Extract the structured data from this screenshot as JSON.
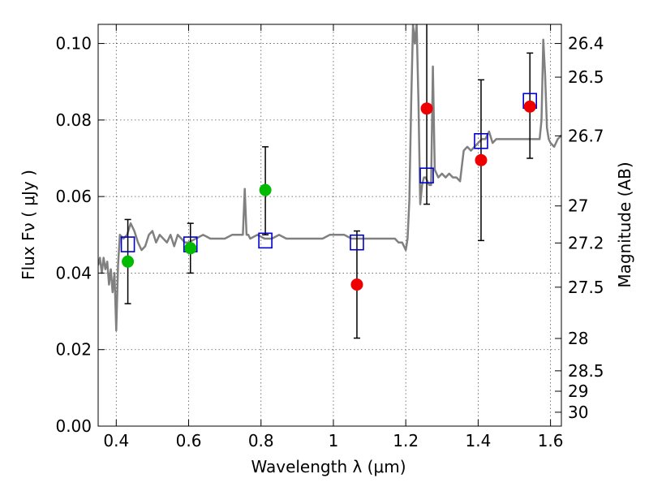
{
  "chart_data": {
    "type": "scatter",
    "xlabel": "Wavelength  λ (μm)",
    "ylabel": "Flux  Fν  ( μJy )",
    "ylabel_right": "Magnitude (AB)",
    "xlim": [
      0.35,
      1.63
    ],
    "ylim": [
      0.0,
      0.105
    ],
    "grid": true,
    "x_ticks": [
      "0.4",
      "0.6",
      "0.8",
      "1",
      "1.2",
      "1.4",
      "1.6"
    ],
    "x_tick_values": [
      0.4,
      0.6,
      0.8,
      1.0,
      1.2,
      1.4,
      1.6
    ],
    "y_ticks": [
      "0.00",
      "0.02",
      "0.04",
      "0.06",
      "0.08",
      "0.10"
    ],
    "y_tick_values": [
      0.0,
      0.02,
      0.04,
      0.06,
      0.08,
      0.1
    ],
    "mag_ticks": [
      "26.4",
      "26.5",
      "26.7",
      "27",
      "27.2",
      "27.5",
      "28",
      "28.5",
      "29",
      "30"
    ],
    "mag_tick_values": [
      26.4,
      26.5,
      26.7,
      27.0,
      27.2,
      27.5,
      28.0,
      28.5,
      29.0,
      30.0
    ],
    "colors": {
      "spectrum": "#808080",
      "model_box": "#0000cc",
      "green_point": "#00bb00",
      "red_point": "#ee0000",
      "errorbar": "#000000"
    },
    "spectrum": {
      "name": "",
      "x": [
        0.35,
        0.355,
        0.36,
        0.365,
        0.37,
        0.375,
        0.38,
        0.385,
        0.39,
        0.395,
        0.4,
        0.405,
        0.41,
        0.42,
        0.43,
        0.44,
        0.45,
        0.46,
        0.47,
        0.48,
        0.49,
        0.5,
        0.51,
        0.52,
        0.53,
        0.54,
        0.55,
        0.56,
        0.57,
        0.58,
        0.59,
        0.6,
        0.62,
        0.64,
        0.66,
        0.68,
        0.7,
        0.72,
        0.74,
        0.75,
        0.755,
        0.76,
        0.765,
        0.77,
        0.79,
        0.81,
        0.83,
        0.85,
        0.87,
        0.89,
        0.91,
        0.93,
        0.95,
        0.97,
        0.99,
        1.01,
        1.03,
        1.05,
        1.07,
        1.09,
        1.11,
        1.13,
        1.15,
        1.17,
        1.18,
        1.19,
        1.2,
        1.205,
        1.21,
        1.215,
        1.22,
        1.225,
        1.23,
        1.235,
        1.24,
        1.245,
        1.25,
        1.255,
        1.26,
        1.265,
        1.27,
        1.275,
        1.28,
        1.29,
        1.3,
        1.31,
        1.32,
        1.33,
        1.34,
        1.35,
        1.36,
        1.37,
        1.38,
        1.39,
        1.4,
        1.41,
        1.42,
        1.43,
        1.44,
        1.45,
        1.47,
        1.49,
        1.51,
        1.53,
        1.55,
        1.57,
        1.575,
        1.58,
        1.585,
        1.59,
        1.595,
        1.6,
        1.61,
        1.62,
        1.63
      ],
      "y": [
        0.042,
        0.044,
        0.04,
        0.044,
        0.041,
        0.043,
        0.037,
        0.041,
        0.035,
        0.04,
        0.025,
        0.042,
        0.05,
        0.049,
        0.05,
        0.053,
        0.051,
        0.048,
        0.046,
        0.047,
        0.05,
        0.051,
        0.048,
        0.05,
        0.049,
        0.048,
        0.05,
        0.047,
        0.05,
        0.049,
        0.048,
        0.048,
        0.049,
        0.05,
        0.049,
        0.049,
        0.049,
        0.05,
        0.05,
        0.05,
        0.062,
        0.05,
        0.05,
        0.049,
        0.05,
        0.049,
        0.049,
        0.05,
        0.049,
        0.049,
        0.049,
        0.049,
        0.049,
        0.049,
        0.05,
        0.05,
        0.05,
        0.049,
        0.049,
        0.049,
        0.049,
        0.049,
        0.049,
        0.049,
        0.048,
        0.048,
        0.046,
        0.049,
        0.059,
        0.085,
        0.105,
        0.1,
        0.105,
        0.085,
        0.058,
        0.063,
        0.065,
        0.065,
        0.064,
        0.063,
        0.063,
        0.094,
        0.067,
        0.065,
        0.066,
        0.065,
        0.066,
        0.065,
        0.065,
        0.064,
        0.072,
        0.073,
        0.072,
        0.073,
        0.074,
        0.075,
        0.075,
        0.077,
        0.074,
        0.075,
        0.075,
        0.075,
        0.075,
        0.075,
        0.075,
        0.075,
        0.08,
        0.101,
        0.092,
        0.078,
        0.075,
        0.074,
        0.073,
        0.075,
        0.076
      ]
    },
    "series": [
      {
        "name": "",
        "marker": "open-square",
        "x": [
          0.432,
          0.605,
          0.812,
          1.065,
          1.258,
          1.408,
          1.543
        ],
        "y": [
          0.0475,
          0.0475,
          0.0485,
          0.048,
          0.0655,
          0.0745,
          0.085
        ]
      },
      {
        "name": "",
        "marker": "filled-circle-green",
        "x": [
          0.432,
          0.605,
          0.812
        ],
        "y": [
          0.043,
          0.0465,
          0.0617
        ]
      },
      {
        "name": "",
        "marker": "filled-circle-red",
        "x": [
          1.065,
          1.258,
          1.408,
          1.543
        ],
        "y": [
          0.037,
          0.083,
          0.0695,
          0.0835
        ]
      }
    ],
    "errorbars": [
      {
        "x": 0.432,
        "ylow": 0.032,
        "yhigh": 0.054
      },
      {
        "x": 0.605,
        "ylow": 0.04,
        "yhigh": 0.053
      },
      {
        "x": 0.812,
        "ylow": 0.05,
        "yhigh": 0.073
      },
      {
        "x": 1.065,
        "ylow": 0.023,
        "yhigh": 0.051
      },
      {
        "x": 1.258,
        "ylow": 0.058,
        "yhigh": 0.105
      },
      {
        "x": 1.408,
        "ylow": 0.0485,
        "yhigh": 0.0905
      },
      {
        "x": 1.543,
        "ylow": 0.07,
        "yhigh": 0.0975
      }
    ]
  }
}
